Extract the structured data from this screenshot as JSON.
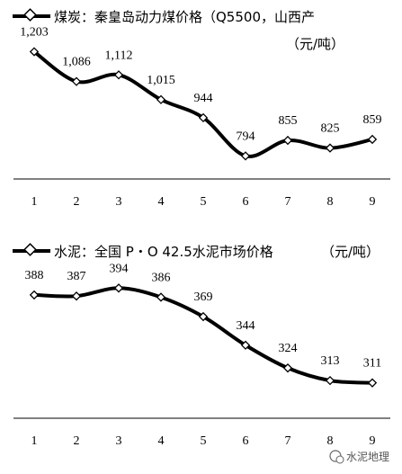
{
  "chart_data": [
    {
      "type": "line",
      "title": "煤炭：秦皇岛动力煤价格（Q5500，山西产",
      "unit": "（元/吨）",
      "categories": [
        "1",
        "2",
        "3",
        "4",
        "5",
        "6",
        "7",
        "8",
        "9"
      ],
      "values": [
        1203,
        1086,
        1112,
        1015,
        944,
        794,
        855,
        825,
        859
      ],
      "labels": [
        "1,203",
        "1,086",
        "1,112",
        "1,015",
        "944",
        "794",
        "855",
        "825",
        "859"
      ],
      "ylim": [
        700,
        1300
      ],
      "color": "#000000",
      "grid": false,
      "legend": "top-left"
    },
    {
      "type": "line",
      "title": "水泥：全国 P・O 42.5水泥市场价格",
      "unit": "（元/吨）",
      "categories": [
        "1",
        "2",
        "3",
        "4",
        "5",
        "6",
        "7",
        "8",
        "9"
      ],
      "values": [
        388,
        387,
        394,
        386,
        369,
        344,
        324,
        313,
        311
      ],
      "labels": [
        "388",
        "387",
        "394",
        "386",
        "369",
        "344",
        "324",
        "313",
        "311"
      ],
      "ylim": [
        280,
        410
      ],
      "color": "#000000",
      "grid": false,
      "legend": "top-left"
    }
  ],
  "watermark": "水泥地理"
}
